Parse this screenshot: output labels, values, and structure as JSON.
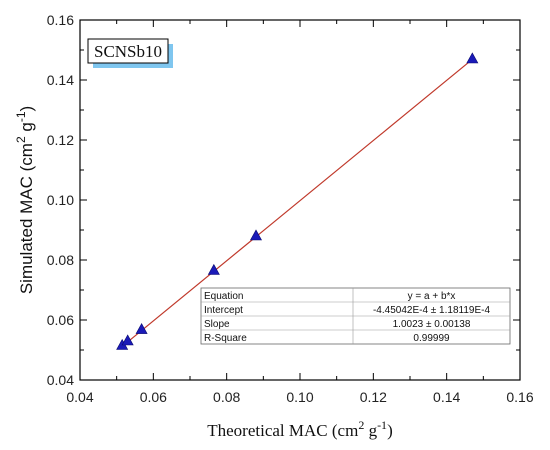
{
  "chart_data": {
    "type": "scatter",
    "title": "",
    "xlabel": "Theoretical MAC (cm",
    "xlabel_sup": "2",
    "xlabel_mid": " g",
    "xlabel_sup2": "-1",
    "xlabel_end": ")",
    "ylabel": "Simulated MAC (cm",
    "ylabel_sup": "2",
    "ylabel_mid": " g",
    "ylabel_sup2": "-1",
    "ylabel_end": ")",
    "xlim": [
      0.04,
      0.16
    ],
    "ylim": [
      0.04,
      0.16
    ],
    "x_ticks": [
      "0.04",
      "0.06",
      "0.08",
      "0.10",
      "0.12",
      "0.14",
      "0.16"
    ],
    "y_ticks": [
      "0.04",
      "0.06",
      "0.08",
      "0.10",
      "0.12",
      "0.14",
      "0.16"
    ],
    "grid": false,
    "annotation": "SCNSb10",
    "marker_color": "#1a1ab8",
    "fit_color": "#c0392b",
    "series": [
      {
        "x": [
          0.0515,
          0.053,
          0.0568,
          0.0765,
          0.088,
          0.147
        ],
        "y": [
          0.0515,
          0.053,
          0.0568,
          0.0765,
          0.088,
          0.147
        ]
      }
    ],
    "fit_line": {
      "intercept": -0.000445042,
      "slope": 1.0023,
      "x_range": [
        0.0515,
        0.147
      ]
    },
    "fit_table": [
      [
        "Equation",
        "y = a + b*x"
      ],
      [
        "Intercept",
        "-4.45042E-4 ± 1.18119E-4"
      ],
      [
        "Slope",
        "1.0023 ± 0.00138"
      ],
      [
        "R-Square",
        "0.99999"
      ]
    ]
  }
}
